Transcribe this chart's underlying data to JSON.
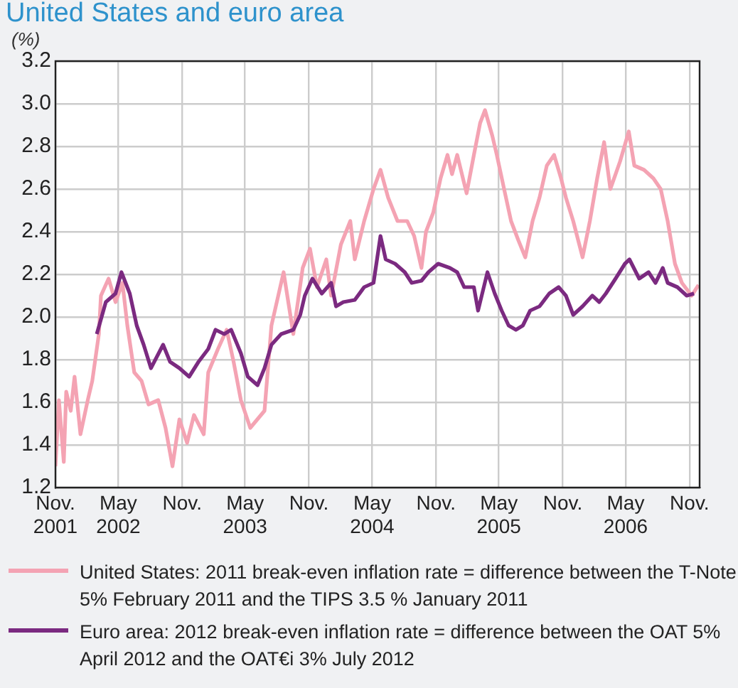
{
  "chart_data": {
    "type": "line",
    "title": "United States and euro area",
    "ylabel": "(%)",
    "xlim": [
      "2001-11-01",
      "2006-11-30"
    ],
    "xticks": [
      {
        "value": "2001-11-01",
        "label": "Nov.\n2001"
      },
      {
        "value": "2002-05-01",
        "label": "May\n2002"
      },
      {
        "value": "2002-11-01",
        "label": "Nov."
      },
      {
        "value": "2003-05-01",
        "label": "May\n2003"
      },
      {
        "value": "2003-11-01",
        "label": "Nov."
      },
      {
        "value": "2004-05-01",
        "label": "May\n2004"
      },
      {
        "value": "2004-11-01",
        "label": "Nov."
      },
      {
        "value": "2005-05-01",
        "label": "May\n2005"
      },
      {
        "value": "2005-11-01",
        "label": "Nov."
      },
      {
        "value": "2006-05-01",
        "label": "May\n2006"
      },
      {
        "value": "2006-11-01",
        "label": "Nov."
      }
    ],
    "ylim": [
      1.2,
      3.2
    ],
    "yticks": [
      {
        "value": 1.2,
        "label": "1.2"
      },
      {
        "value": 1.4,
        "label": "1.4"
      },
      {
        "value": 1.6,
        "label": "1.6"
      },
      {
        "value": 1.8,
        "label": "1.8"
      },
      {
        "value": 2.0,
        "label": "2.0"
      },
      {
        "value": 2.2,
        "label": "2.2"
      },
      {
        "value": 2.4,
        "label": "2.4"
      },
      {
        "value": 2.6,
        "label": "2.6"
      },
      {
        "value": 2.8,
        "label": "2.8"
      },
      {
        "value": 3.0,
        "label": "3.0"
      },
      {
        "value": 3.2,
        "label": "3.2"
      }
    ],
    "grid": true,
    "legend": "bottom",
    "marker": "none",
    "line_style": "solid",
    "series": [
      {
        "name": "United States: 2011 break-even inflation rate =  difference between the T-Note 5% February 2011 and the TIPS 3.5 % January 2011",
        "color": "#f4a3b3",
        "x": [
          "2001-11-01",
          "2001-11-11",
          "2001-11-25",
          "2001-12-02",
          "2001-12-15",
          "2001-12-26",
          "2002-01-12",
          "2002-02-02",
          "2002-02-15",
          "2002-03-06",
          "2002-03-12",
          "2002-04-03",
          "2002-04-23",
          "2002-05-13",
          "2002-05-27",
          "2002-06-16",
          "2002-07-07",
          "2002-07-27",
          "2002-08-24",
          "2002-09-14",
          "2002-10-04",
          "2002-10-24",
          "2002-11-15",
          "2002-12-05",
          "2003-01-02",
          "2003-01-15",
          "2003-02-12",
          "2003-03-09",
          "2003-03-29",
          "2003-04-19",
          "2003-05-16",
          "2003-06-26",
          "2003-07-16",
          "2003-08-20",
          "2003-09-17",
          "2003-10-14",
          "2003-11-04",
          "2003-11-24",
          "2003-12-21",
          "2004-01-04",
          "2004-02-01",
          "2004-02-28",
          "2004-03-12",
          "2004-04-08",
          "2004-05-05",
          "2004-05-25",
          "2004-06-16",
          "2004-07-13",
          "2004-08-10",
          "2004-08-30",
          "2004-09-20",
          "2004-10-03",
          "2004-10-24",
          "2004-11-14",
          "2004-12-04",
          "2004-12-17",
          "2005-01-01",
          "2005-01-28",
          "2005-02-18",
          "2005-03-08",
          "2005-03-22",
          "2005-04-12",
          "2005-04-25",
          "2005-05-16",
          "2005-06-05",
          "2005-06-26",
          "2005-07-16",
          "2005-08-06",
          "2005-08-26",
          "2005-09-16",
          "2005-10-07",
          "2005-10-27",
          "2005-11-10",
          "2005-12-01",
          "2005-12-28",
          "2006-01-18",
          "2006-02-08",
          "2006-02-28",
          "2006-03-18",
          "2006-04-15",
          "2006-05-10",
          "2006-05-26",
          "2006-06-23",
          "2006-07-20",
          "2006-08-10",
          "2006-08-30",
          "2006-09-20",
          "2006-10-10",
          "2006-11-07",
          "2006-11-27"
        ],
        "values": [
          1.3,
          1.61,
          1.32,
          1.65,
          1.56,
          1.72,
          1.45,
          1.61,
          1.7,
          1.92,
          2.1,
          2.18,
          2.07,
          2.16,
          1.96,
          1.74,
          1.7,
          1.59,
          1.61,
          1.48,
          1.3,
          1.52,
          1.41,
          1.54,
          1.45,
          1.74,
          1.85,
          1.94,
          1.79,
          1.61,
          1.48,
          1.56,
          1.96,
          2.21,
          1.92,
          2.23,
          2.32,
          2.14,
          2.27,
          2.1,
          2.34,
          2.45,
          2.27,
          2.45,
          2.6,
          2.69,
          2.56,
          2.45,
          2.45,
          2.38,
          2.23,
          2.4,
          2.49,
          2.65,
          2.76,
          2.67,
          2.76,
          2.58,
          2.76,
          2.91,
          2.97,
          2.85,
          2.76,
          2.6,
          2.45,
          2.36,
          2.28,
          2.45,
          2.56,
          2.71,
          2.76,
          2.65,
          2.56,
          2.45,
          2.28,
          2.45,
          2.65,
          2.82,
          2.6,
          2.73,
          2.87,
          2.71,
          2.69,
          2.65,
          2.6,
          2.45,
          2.25,
          2.16,
          2.1,
          2.15
        ]
      },
      {
        "name": "Euro area: 2012 break-even inflation rate = difference between the OAT 5% April 2012 and the OAT€i 3% July 2012",
        "color": "#7b2a80",
        "x": [
          "2002-02-28",
          "2002-03-26",
          "2002-04-23",
          "2002-05-10",
          "2002-06-03",
          "2002-06-23",
          "2002-07-13",
          "2002-08-03",
          "2002-09-07",
          "2002-09-27",
          "2002-10-24",
          "2002-11-21",
          "2002-12-18",
          "2003-01-15",
          "2003-02-05",
          "2003-03-02",
          "2003-03-22",
          "2003-04-19",
          "2003-05-09",
          "2003-06-06",
          "2003-06-26",
          "2003-07-16",
          "2003-08-13",
          "2003-09-17",
          "2003-10-07",
          "2003-10-20",
          "2003-11-11",
          "2003-12-08",
          "2004-01-04",
          "2004-01-18",
          "2004-02-08",
          "2004-03-12",
          "2004-04-08",
          "2004-05-05",
          "2004-05-25",
          "2004-06-09",
          "2004-07-06",
          "2004-08-03",
          "2004-08-23",
          "2004-09-20",
          "2004-10-10",
          "2004-11-07",
          "2004-12-11",
          "2005-01-01",
          "2005-01-21",
          "2005-02-18",
          "2005-03-02",
          "2005-03-29",
          "2005-04-19",
          "2005-05-09",
          "2005-05-29",
          "2005-06-19",
          "2005-07-09",
          "2005-07-30",
          "2005-08-26",
          "2005-09-23",
          "2005-10-20",
          "2005-11-10",
          "2005-12-01",
          "2005-12-28",
          "2006-01-25",
          "2006-02-14",
          "2006-03-05",
          "2006-04-02",
          "2006-04-29",
          "2006-05-12",
          "2006-06-09",
          "2006-07-06",
          "2006-07-26",
          "2006-08-16",
          "2006-08-30",
          "2006-09-27",
          "2006-10-24",
          "2006-11-14"
        ],
        "values": [
          1.92,
          2.07,
          2.11,
          2.21,
          2.11,
          1.96,
          1.87,
          1.76,
          1.87,
          1.79,
          1.76,
          1.72,
          1.79,
          1.85,
          1.94,
          1.92,
          1.94,
          1.83,
          1.72,
          1.68,
          1.76,
          1.87,
          1.92,
          1.94,
          2.01,
          2.1,
          2.18,
          2.11,
          2.16,
          2.05,
          2.07,
          2.08,
          2.14,
          2.16,
          2.38,
          2.27,
          2.25,
          2.21,
          2.16,
          2.17,
          2.21,
          2.25,
          2.23,
          2.21,
          2.14,
          2.14,
          2.03,
          2.21,
          2.11,
          2.03,
          1.96,
          1.94,
          1.96,
          2.03,
          2.05,
          2.11,
          2.14,
          2.1,
          2.01,
          2.05,
          2.1,
          2.07,
          2.11,
          2.18,
          2.25,
          2.27,
          2.18,
          2.21,
          2.16,
          2.23,
          2.16,
          2.14,
          2.1,
          2.11
        ]
      }
    ]
  }
}
